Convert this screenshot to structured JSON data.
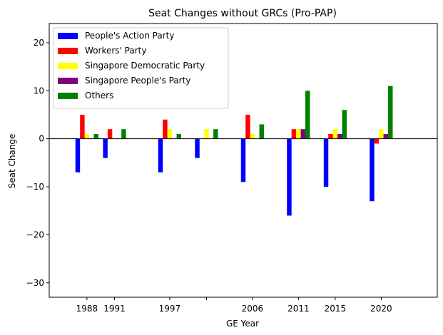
{
  "chart_data": {
    "type": "bar",
    "title": "Seat Changes without GRCs (Pro-PAP)",
    "xlabel": "GE Year",
    "ylabel": "Seat Change",
    "x": [
      1988,
      1991,
      1997,
      2001,
      2006,
      2011,
      2015,
      2020
    ],
    "x_tick_labels": [
      "1988",
      "1991",
      "1997",
      "",
      "2006",
      "2011",
      "2015",
      "2020"
    ],
    "xlim": [
      1983.9,
      2026.1
    ],
    "ylim": [
      -33,
      24
    ],
    "y_ticks": [
      -30,
      -20,
      -10,
      0,
      10,
      20
    ],
    "grid": false,
    "legend_position": "top-left",
    "series": [
      {
        "name": "People's Action Party",
        "color": "#0000ff",
        "values": [
          -7,
          -4,
          -7,
          -4,
          -9,
          -16,
          -10,
          -13
        ]
      },
      {
        "name": "Workers' Party",
        "color": "#ff0000",
        "values": [
          5,
          2,
          4,
          0,
          5,
          2,
          1,
          -1
        ]
      },
      {
        "name": "Singapore Democratic Party",
        "color": "#ffff00",
        "values": [
          1,
          0,
          2,
          2,
          1,
          2,
          2,
          2
        ]
      },
      {
        "name": "Singapore People's Party",
        "color": "#800080",
        "values": [
          0,
          0,
          0,
          0,
          0,
          2,
          1,
          1
        ]
      },
      {
        "name": "Others",
        "color": "#008000",
        "values": [
          1,
          2,
          1,
          2,
          3,
          10,
          6,
          11
        ]
      }
    ]
  }
}
